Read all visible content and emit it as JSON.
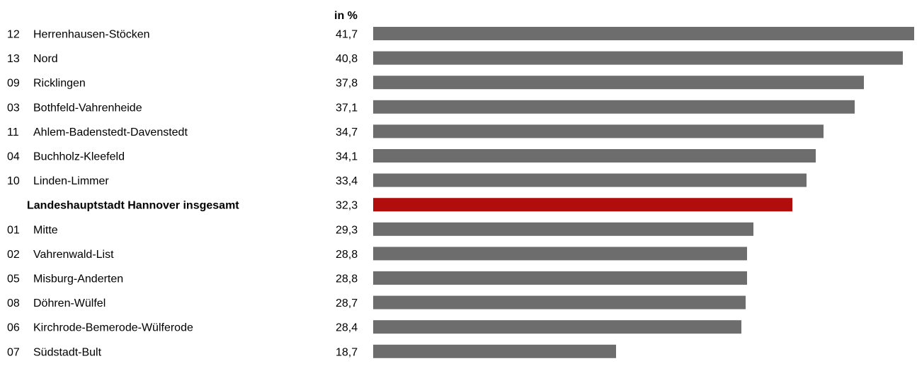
{
  "chart_data": {
    "type": "bar",
    "orientation": "horizontal",
    "unit_label": "in %",
    "grid": false,
    "xlim": [
      0,
      41.7
    ],
    "categories": [
      {
        "code": "12",
        "name": "Herrenhausen-Stöcken",
        "value": 41.7,
        "value_label": "41,7",
        "highlight": false
      },
      {
        "code": "13",
        "name": "Nord",
        "value": 40.8,
        "value_label": "40,8",
        "highlight": false
      },
      {
        "code": "09",
        "name": "Ricklingen",
        "value": 37.8,
        "value_label": "37,8",
        "highlight": false
      },
      {
        "code": "03",
        "name": "Bothfeld-Vahrenheide",
        "value": 37.1,
        "value_label": "37,1",
        "highlight": false
      },
      {
        "code": "11",
        "name": "Ahlem-Badenstedt-Davenstedt",
        "value": 34.7,
        "value_label": "34,7",
        "highlight": false
      },
      {
        "code": "04",
        "name": "Buchholz-Kleefeld",
        "value": 34.1,
        "value_label": "34,1",
        "highlight": false
      },
      {
        "code": "10",
        "name": "Linden-Limmer",
        "value": 33.4,
        "value_label": "33,4",
        "highlight": false
      },
      {
        "code": "",
        "name": "Landeshauptstadt Hannover insgesamt",
        "value": 32.3,
        "value_label": "32,3",
        "highlight": true
      },
      {
        "code": "01",
        "name": "Mitte",
        "value": 29.3,
        "value_label": "29,3",
        "highlight": false
      },
      {
        "code": "02",
        "name": "Vahrenwald-List",
        "value": 28.8,
        "value_label": "28,8",
        "highlight": false
      },
      {
        "code": "05",
        "name": "Misburg-Anderten",
        "value": 28.8,
        "value_label": "28,8",
        "highlight": false
      },
      {
        "code": "08",
        "name": "Döhren-Wülfel",
        "value": 28.7,
        "value_label": "28,7",
        "highlight": false
      },
      {
        "code": "06",
        "name": "Kirchrode-Bemerode-Wülferode",
        "value": 28.4,
        "value_label": "28,4",
        "highlight": false
      },
      {
        "code": "07",
        "name": "Südstadt-Bult",
        "value": 18.7,
        "value_label": "18,7",
        "highlight": false
      }
    ],
    "colors": {
      "bar": "#6d6d6d",
      "highlight_bar": "#b20d0d",
      "text": "#000000"
    }
  }
}
